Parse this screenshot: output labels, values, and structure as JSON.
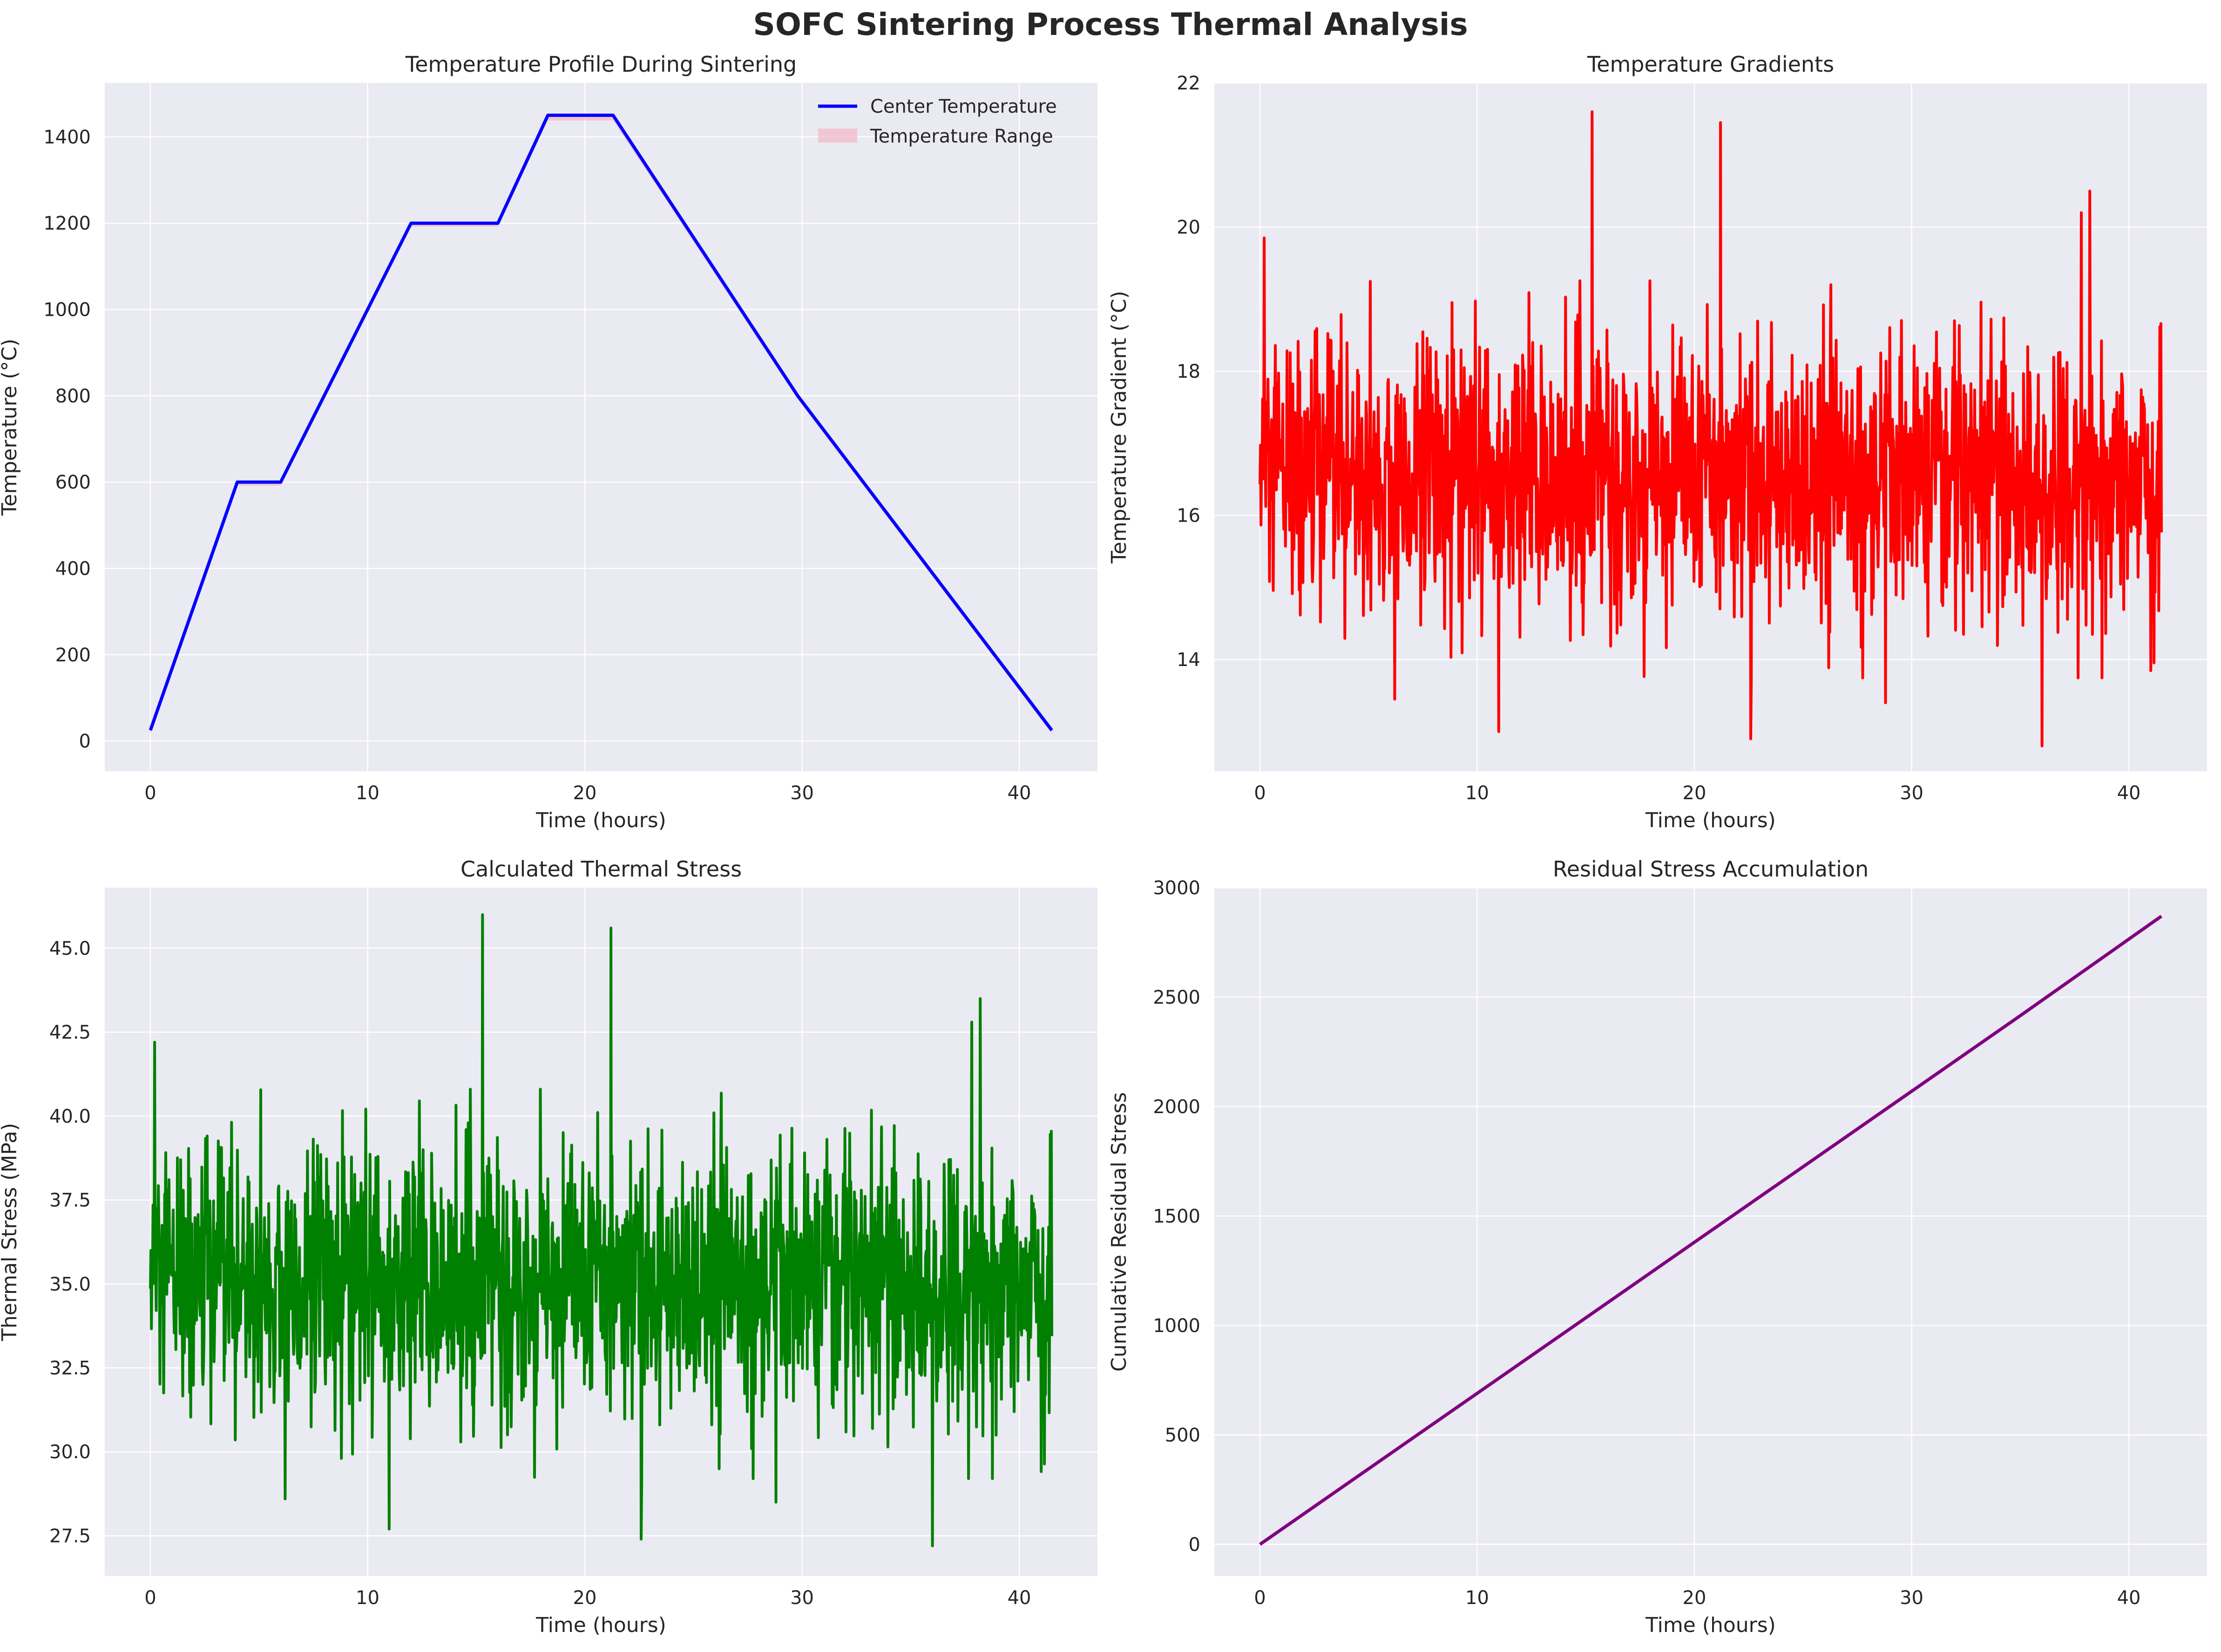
{
  "figure": {
    "suptitle": "SOFC Sintering Process Thermal Analysis"
  },
  "colors": {
    "background": "#eaeaf2",
    "grid": "#ffffff",
    "text": "#262626"
  },
  "chart_data": [
    {
      "type": "line",
      "title": "Temperature Profile During Sintering",
      "xlabel": "Time (hours)",
      "ylabel": "Temperature (°C)",
      "xlim": [
        -2.1,
        43.6
      ],
      "ylim": [
        -70,
        1525
      ],
      "xticks": [
        0,
        10,
        20,
        30,
        40
      ],
      "xtick_labels": [
        "0",
        "10",
        "20",
        "30",
        "40"
      ],
      "yticks": [
        0,
        200,
        400,
        600,
        800,
        1000,
        1200,
        1400
      ],
      "ytick_labels": [
        "0",
        "200",
        "400",
        "600",
        "800",
        "1000",
        "1200",
        "1400"
      ],
      "grid": true,
      "legend": {
        "position": "top-right",
        "entries": [
          "Center Temperature",
          "Temperature Range"
        ]
      },
      "series": [
        {
          "name": "Center Temperature",
          "color": "#0000ff",
          "style": "line",
          "x": [
            0,
            4,
            6,
            12,
            16,
            18.3,
            21.3,
            29.8,
            41.5
          ],
          "y": [
            25,
            600,
            600,
            1200,
            1200,
            1450,
            1450,
            800,
            25
          ]
        },
        {
          "name": "Temperature Range",
          "color": "#f4b6c8",
          "style": "band",
          "x": [
            0,
            4,
            6,
            12,
            16,
            18.3,
            21.3,
            29.8,
            41.5
          ],
          "y_low": [
            17,
            592,
            592,
            1192,
            1192,
            1438,
            1438,
            792,
            17
          ],
          "y_high": [
            25,
            600,
            600,
            1200,
            1200,
            1450,
            1450,
            800,
            25
          ]
        }
      ]
    },
    {
      "type": "line",
      "title": "Temperature Gradients",
      "xlabel": "Time (hours)",
      "ylabel": "Temperature Gradient (°C)",
      "xlim": [
        -2.1,
        43.6
      ],
      "ylim": [
        12.45,
        22.0
      ],
      "xticks": [
        0,
        10,
        20,
        30,
        40
      ],
      "xtick_labels": [
        "0",
        "10",
        "20",
        "30",
        "40"
      ],
      "yticks": [
        14,
        16,
        18,
        20,
        22
      ],
      "ytick_labels": [
        "14",
        "16",
        "18",
        "20",
        "22"
      ],
      "grid": true,
      "series": [
        {
          "color": "#ff0000",
          "style": "noise",
          "x_range": [
            0,
            41.5
          ],
          "points": 1700,
          "mean": 16.5,
          "std": 0.95,
          "extremes": [
            [
              0.2,
              19.85
            ],
            [
              15.3,
              21.6
            ],
            [
              21.2,
              21.45
            ],
            [
              38.2,
              20.5
            ],
            [
              37.8,
              20.2
            ],
            [
              22.6,
              12.9
            ],
            [
              36.0,
              12.8
            ],
            [
              11.0,
              13.0
            ],
            [
              28.8,
              13.4
            ],
            [
              6.2,
              13.45
            ]
          ]
        }
      ]
    },
    {
      "type": "line",
      "title": "Calculated Thermal Stress",
      "xlabel": "Time (hours)",
      "ylabel": "Thermal Stress (MPa)",
      "xlim": [
        -2.1,
        43.6
      ],
      "ylim": [
        26.3,
        46.8
      ],
      "xticks": [
        0,
        10,
        20,
        30,
        40
      ],
      "xtick_labels": [
        "0",
        "10",
        "20",
        "30",
        "40"
      ],
      "yticks": [
        27.5,
        30.0,
        32.5,
        35.0,
        37.5,
        40.0,
        42.5,
        45.0
      ],
      "ytick_labels": [
        "27.5",
        "30.0",
        "32.5",
        "35.0",
        "37.5",
        "40.0",
        "42.5",
        "45.0"
      ],
      "grid": true,
      "series": [
        {
          "color": "#008000",
          "style": "noise",
          "x_range": [
            0,
            41.5
          ],
          "points": 1700,
          "mean": 35.0,
          "std": 2.0,
          "extremes": [
            [
              0.2,
              42.2
            ],
            [
              15.3,
              46.0
            ],
            [
              21.2,
              45.6
            ],
            [
              38.2,
              43.5
            ],
            [
              37.8,
              42.8
            ],
            [
              22.6,
              27.4
            ],
            [
              36.0,
              27.2
            ],
            [
              11.0,
              27.7
            ],
            [
              28.8,
              28.5
            ],
            [
              6.2,
              28.6
            ]
          ]
        }
      ]
    },
    {
      "type": "line",
      "title": "Residual Stress Accumulation",
      "xlabel": "Time (hours)",
      "ylabel": "Cumulative Residual Stress",
      "xlim": [
        -2.1,
        43.6
      ],
      "ylim": [
        -145,
        3000
      ],
      "xticks": [
        0,
        10,
        20,
        30,
        40
      ],
      "xtick_labels": [
        "0",
        "10",
        "20",
        "30",
        "40"
      ],
      "yticks": [
        0,
        500,
        1000,
        1500,
        2000,
        2500,
        3000
      ],
      "ytick_labels": [
        "0",
        "500",
        "1000",
        "1500",
        "2000",
        "2500",
        "3000"
      ],
      "grid": true,
      "series": [
        {
          "color": "#800080",
          "style": "line",
          "x": [
            0,
            5,
            10,
            15,
            20,
            25,
            30,
            35,
            41.5
          ],
          "y": [
            0,
            345,
            690,
            1035,
            1380,
            1725,
            2070,
            2415,
            2870
          ]
        }
      ]
    }
  ]
}
